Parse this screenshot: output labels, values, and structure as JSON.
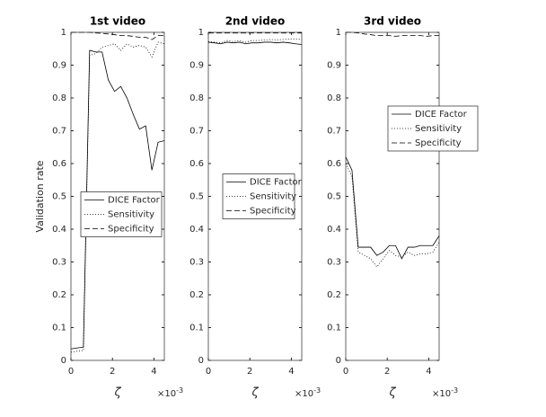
{
  "chart_data": [
    {
      "type": "line",
      "title": "1st video",
      "ylabel": "Validation rate",
      "xlabel": "ζ",
      "x_exponent": {
        "base": "×10",
        "power": "-3"
      },
      "x": [
        0,
        0.0003,
        0.0006,
        0.0009,
        0.0012,
        0.0015,
        0.0018,
        0.0021,
        0.0024,
        0.0027,
        0.003,
        0.0033,
        0.0036,
        0.0039,
        0.0042,
        0.0045
      ],
      "xlim": [
        0,
        0.0045
      ],
      "ylim": [
        0,
        1
      ],
      "xticks": [
        0,
        {
          "value": 0.002,
          "label": "2"
        },
        {
          "value": 0.004,
          "label": "4"
        }
      ],
      "yticks": [
        0,
        0.1,
        0.2,
        0.3,
        0.4,
        0.5,
        0.6,
        0.7,
        0.8,
        0.9,
        1
      ],
      "legend": "center",
      "series": [
        {
          "name": "DICE Factor",
          "color": "#000000",
          "line_style": "solid",
          "values": [
            0.035,
            0.038,
            0.04,
            0.945,
            0.94,
            0.94,
            0.855,
            0.82,
            0.835,
            0.8,
            0.75,
            0.705,
            0.715,
            0.58,
            0.665,
            0.67
          ]
        },
        {
          "name": "Sensitivity",
          "color": "#000000",
          "line_style": "dotted",
          "values": [
            0.025,
            0.028,
            0.03,
            0.93,
            0.935,
            0.955,
            0.96,
            0.965,
            0.945,
            0.965,
            0.955,
            0.96,
            0.955,
            0.925,
            0.97,
            0.965
          ]
        },
        {
          "name": "Specificity",
          "color": "#000000",
          "line_style": "dashed",
          "values": [
            1,
            1,
            1,
            1,
            0.998,
            0.997,
            0.995,
            0.993,
            0.99,
            0.99,
            0.988,
            0.985,
            0.985,
            0.978,
            0.99,
            0.99
          ]
        }
      ]
    },
    {
      "type": "line",
      "title": "2nd video",
      "xlabel": "ζ",
      "x_exponent": {
        "base": "×10",
        "power": "-3"
      },
      "x": [
        0,
        0.0003,
        0.0006,
        0.0009,
        0.0012,
        0.0015,
        0.0018,
        0.0021,
        0.0024,
        0.0027,
        0.003,
        0.0033,
        0.0036,
        0.0039,
        0.0042,
        0.0045
      ],
      "xlim": [
        0,
        0.0045
      ],
      "ylim": [
        0,
        1
      ],
      "xticks": [
        0,
        {
          "value": 0.002,
          "label": "2"
        },
        {
          "value": 0.004,
          "label": "4"
        }
      ],
      "yticks": [
        0,
        0.1,
        0.2,
        0.3,
        0.4,
        0.5,
        0.6,
        0.7,
        0.8,
        0.9,
        1
      ],
      "legend": "center",
      "series": [
        {
          "name": "DICE Factor",
          "color": "#000000",
          "line_style": "solid",
          "values": [
            0.97,
            0.968,
            0.965,
            0.97,
            0.968,
            0.97,
            0.965,
            0.968,
            0.968,
            0.97,
            0.97,
            0.968,
            0.97,
            0.968,
            0.965,
            0.963
          ]
        },
        {
          "name": "Sensitivity",
          "color": "#000000",
          "line_style": "dotted",
          "values": [
            0.972,
            0.97,
            0.968,
            0.975,
            0.972,
            0.975,
            0.97,
            0.975,
            0.975,
            0.977,
            0.978,
            0.977,
            0.978,
            0.98,
            0.98,
            0.978
          ]
        },
        {
          "name": "Specificity",
          "color": "#000000",
          "line_style": "dashed",
          "values": [
            0.998,
            0.998,
            0.998,
            0.998,
            0.998,
            0.998,
            0.998,
            0.998,
            0.998,
            0.998,
            0.998,
            0.998,
            0.998,
            0.998,
            0.998,
            0.998
          ]
        }
      ]
    },
    {
      "type": "line",
      "title": "3rd video",
      "xlabel": "ζ",
      "x_exponent": {
        "base": "×10",
        "power": "-3"
      },
      "x": [
        0,
        0.0003,
        0.0006,
        0.0009,
        0.0012,
        0.0015,
        0.0018,
        0.0021,
        0.0024,
        0.0027,
        0.003,
        0.0033,
        0.0036,
        0.0039,
        0.0042,
        0.0045
      ],
      "xlim": [
        0,
        0.0045
      ],
      "ylim": [
        0,
        1
      ],
      "xticks": [
        0,
        {
          "value": 0.002,
          "label": "2"
        },
        {
          "value": 0.004,
          "label": "4"
        }
      ],
      "yticks": [
        0,
        0.1,
        0.2,
        0.3,
        0.4,
        0.5,
        0.6,
        0.7,
        0.8,
        0.9,
        1
      ],
      "legend": "northeast",
      "series": [
        {
          "name": "DICE Factor",
          "color": "#000000",
          "line_style": "solid",
          "values": [
            0.62,
            0.58,
            0.345,
            0.345,
            0.345,
            0.32,
            0.33,
            0.35,
            0.35,
            0.31,
            0.345,
            0.345,
            0.35,
            0.35,
            0.35,
            0.38
          ]
        },
        {
          "name": "Sensitivity",
          "color": "#000000",
          "line_style": "dotted",
          "values": [
            0.6,
            0.56,
            0.33,
            0.32,
            0.31,
            0.285,
            0.31,
            0.335,
            0.32,
            0.315,
            0.33,
            0.32,
            0.325,
            0.325,
            0.33,
            0.36
          ]
        },
        {
          "name": "Specificity",
          "color": "#000000",
          "line_style": "dashed",
          "values": [
            1,
            1,
            0.998,
            0.995,
            0.993,
            0.99,
            0.99,
            0.99,
            0.988,
            0.99,
            0.99,
            0.99,
            0.99,
            0.988,
            0.99,
            0.99
          ]
        }
      ]
    }
  ]
}
